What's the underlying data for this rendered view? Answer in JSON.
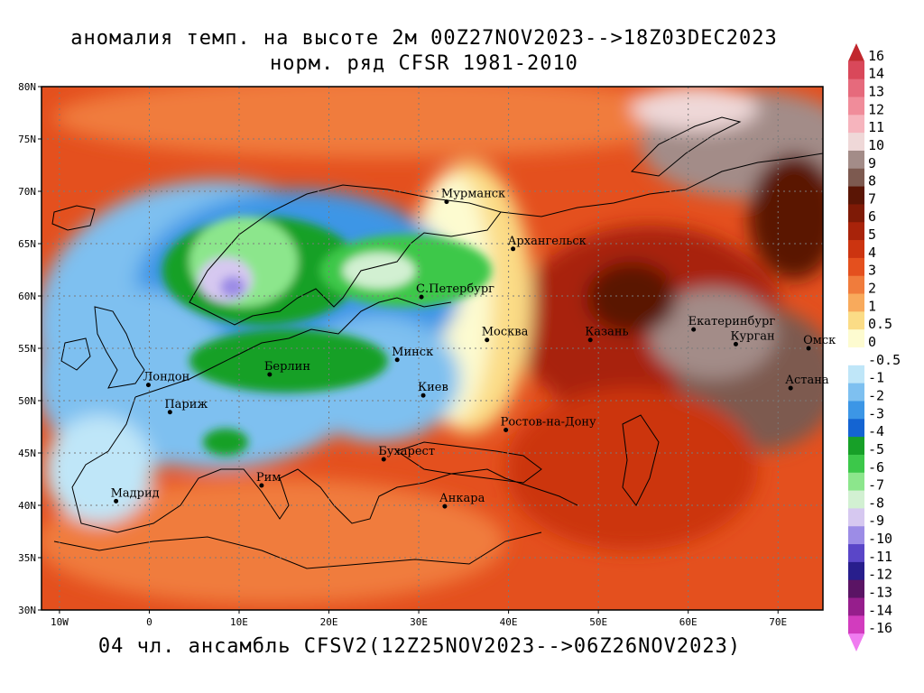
{
  "title": {
    "line1": "аномалия темп. на высоте 2м 00Z27NOV2023-->18Z03DEC2023",
    "line2": "норм. ряд CFSR 1981-2010"
  },
  "footer": "04 чл. ансамбль CFSV2(12Z25NOV2023-->06Z26NOV2023)",
  "axes": {
    "lat_labels": [
      "80N",
      "75N",
      "70N",
      "65N",
      "60N",
      "55N",
      "50N",
      "45N",
      "40N",
      "35N",
      "30N"
    ],
    "lon_labels": [
      "10W",
      "0",
      "10E",
      "20E",
      "30E",
      "40E",
      "50E",
      "60E",
      "70E"
    ]
  },
  "cities": [
    {
      "name": "Мурманск",
      "lon": 33.1,
      "lat": 69.0
    },
    {
      "name": "Архангельск",
      "lon": 40.5,
      "lat": 64.5
    },
    {
      "name": "С.Петербург",
      "lon": 30.3,
      "lat": 59.9
    },
    {
      "name": "Москва",
      "lon": 37.6,
      "lat": 55.8
    },
    {
      "name": "Казань",
      "lon": 49.1,
      "lat": 55.8
    },
    {
      "name": "Екатеринбург",
      "lon": 60.6,
      "lat": 56.8
    },
    {
      "name": "Курган",
      "lon": 65.3,
      "lat": 55.4
    },
    {
      "name": "Омск",
      "lon": 73.4,
      "lat": 55.0
    },
    {
      "name": "Астана",
      "lon": 71.4,
      "lat": 51.2
    },
    {
      "name": "Минск",
      "lon": 27.6,
      "lat": 53.9
    },
    {
      "name": "Берлин",
      "lon": 13.4,
      "lat": 52.5
    },
    {
      "name": "Лондон",
      "lon": -0.1,
      "lat": 51.5
    },
    {
      "name": "Париж",
      "lon": 2.3,
      "lat": 48.9
    },
    {
      "name": "Киев",
      "lon": 30.5,
      "lat": 50.5
    },
    {
      "name": "Ростов-на-Дону",
      "lon": 39.7,
      "lat": 47.2
    },
    {
      "name": "Бухарест",
      "lon": 26.1,
      "lat": 44.4
    },
    {
      "name": "Рим",
      "lon": 12.5,
      "lat": 41.9
    },
    {
      "name": "Мадрид",
      "lon": -3.7,
      "lat": 40.4
    },
    {
      "name": "Анкара",
      "lon": 32.9,
      "lat": 39.9
    }
  ],
  "colorbar": [
    {
      "label": "16",
      "color": "#c1272d"
    },
    {
      "label": "14",
      "color": "#d9485a"
    },
    {
      "label": "13",
      "color": "#e66a7c"
    },
    {
      "label": "12",
      "color": "#f08c9a"
    },
    {
      "label": "11",
      "color": "#f6b4bd"
    },
    {
      "label": "10",
      "color": "#efd8d8"
    },
    {
      "label": "9",
      "color": "#a38c88"
    },
    {
      "label": "8",
      "color": "#7d5a50"
    },
    {
      "label": "7",
      "color": "#5a1505"
    },
    {
      "label": "6",
      "color": "#7e1a06"
    },
    {
      "label": "5",
      "color": "#a8230a"
    },
    {
      "label": "4",
      "color": "#cc3410"
    },
    {
      "label": "3",
      "color": "#e4501e"
    },
    {
      "label": "2",
      "color": "#f07c3c"
    },
    {
      "label": "1",
      "color": "#f8aa5c"
    },
    {
      "label": "0.5",
      "color": "#fbdc86"
    },
    {
      "label": "0",
      "color": "#fdfbd0"
    },
    {
      "label": "-0.5",
      "color": "#ffffff"
    },
    {
      "label": "-1",
      "color": "#bfe6f8"
    },
    {
      "label": "-2",
      "color": "#7ec0f0"
    },
    {
      "label": "-3",
      "color": "#3c96e6"
    },
    {
      "label": "-4",
      "color": "#1464d2"
    },
    {
      "label": "-5",
      "color": "#17a028"
    },
    {
      "label": "-6",
      "color": "#3cc84a"
    },
    {
      "label": "-7",
      "color": "#8ce68c"
    },
    {
      "label": "-8",
      "color": "#d2f0d2"
    },
    {
      "label": "-9",
      "color": "#d6c8f0"
    },
    {
      "label": "-10",
      "color": "#9c8ce6"
    },
    {
      "label": "-11",
      "color": "#5a46c8"
    },
    {
      "label": "-12",
      "color": "#281e8c"
    },
    {
      "label": "-13",
      "color": "#5a1464"
    },
    {
      "label": "-14",
      "color": "#961e8c"
    },
    {
      "label": "-16",
      "color": "#d23cbe"
    },
    {
      "label": "",
      "color": "#f07cf0"
    }
  ]
}
